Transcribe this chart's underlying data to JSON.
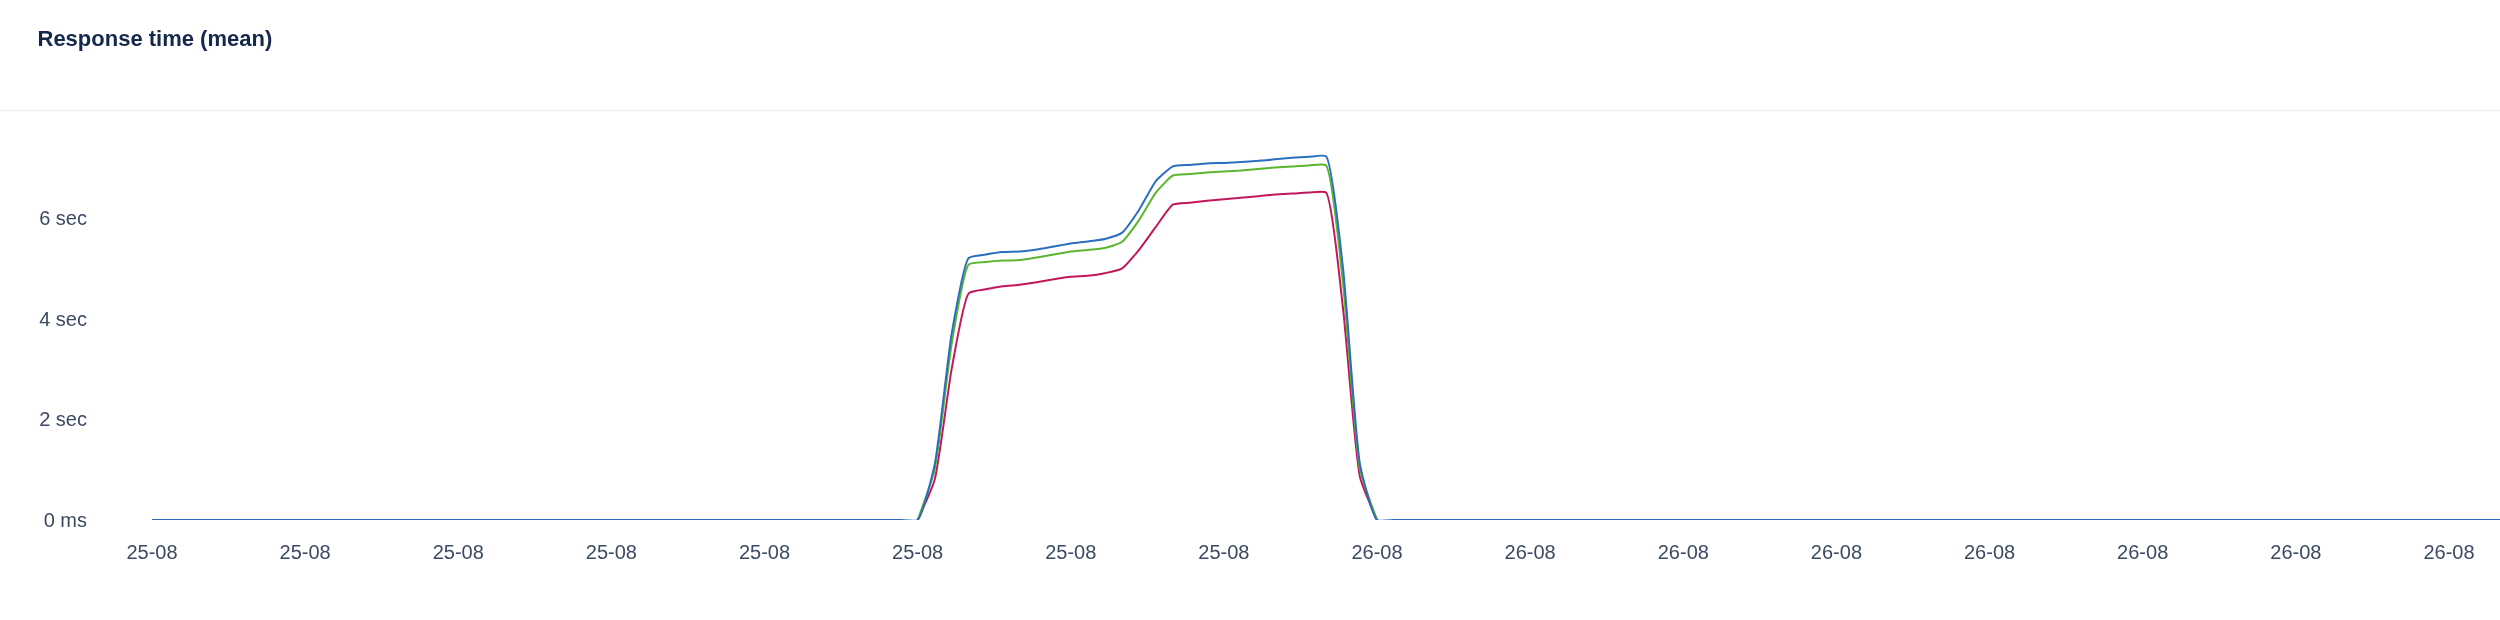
{
  "chart_data": {
    "type": "line",
    "title": "Response time (mean)",
    "categories": [
      "25-08",
      null,
      null,
      null,
      null,
      null,
      null,
      null,
      null,
      "25-08",
      null,
      null,
      null,
      null,
      null,
      null,
      null,
      null,
      "25-08",
      null,
      null,
      null,
      null,
      null,
      null,
      null,
      null,
      "25-08",
      null,
      null,
      null,
      null,
      null,
      null,
      null,
      null,
      "25-08",
      null,
      null,
      null,
      null,
      null,
      null,
      null,
      null,
      "25-08",
      null,
      null,
      null,
      null,
      null,
      null,
      null,
      null,
      "25-08",
      null,
      null,
      null,
      null,
      null,
      null,
      null,
      null,
      "25-08",
      null,
      null,
      null,
      null,
      null,
      null,
      null,
      null,
      "26-08",
      null,
      null,
      null,
      null,
      null,
      null,
      null,
      null,
      "26-08",
      null,
      null,
      null,
      null,
      null,
      null,
      null,
      null,
      "26-08",
      null,
      null,
      null,
      null,
      null,
      null,
      null,
      null,
      "26-08",
      null,
      null,
      null,
      null,
      null,
      null,
      null,
      null,
      "26-08",
      null,
      null,
      null,
      null,
      null,
      null,
      null,
      null,
      "26-08",
      null,
      null,
      null,
      null,
      null,
      null,
      null,
      null,
      "26-08",
      null,
      null,
      null,
      null,
      null,
      null,
      null,
      null,
      "26-08",
      null,
      null,
      null
    ],
    "ylim": [
      0,
      8.14
    ],
    "yticks": [
      {
        "value": 0,
        "label": "0 ms"
      },
      {
        "value": 2,
        "label": "2 sec"
      },
      {
        "value": 4,
        "label": "4 sec"
      },
      {
        "value": 6,
        "label": "6 sec"
      }
    ],
    "marker": "none",
    "line_style": "solid",
    "series": [
      {
        "color": "#c2185b",
        "values": [
          null,
          null,
          null,
          null,
          null,
          null,
          null,
          null,
          null,
          null,
          null,
          null,
          null,
          null,
          null,
          null,
          null,
          null,
          null,
          null,
          null,
          null,
          null,
          null,
          null,
          null,
          null,
          null,
          null,
          null,
          null,
          null,
          null,
          null,
          null,
          null,
          null,
          null,
          null,
          null,
          null,
          null,
          null,
          null,
          null,
          0,
          0.8,
          3.0,
          4.5,
          4.58,
          4.64,
          4.67,
          4.72,
          4.78,
          4.83,
          4.85,
          4.9,
          4.99,
          5.36,
          5.82,
          6.26,
          6.3,
          6.34,
          6.37,
          6.4,
          6.43,
          6.46,
          6.48,
          6.5,
          6.5,
          4.2,
          0.85,
          0,
          null,
          null,
          null,
          null,
          null,
          null,
          null,
          null,
          null,
          null,
          null,
          null,
          null,
          null,
          null,
          null,
          null,
          null,
          null,
          null,
          null,
          null,
          null,
          null,
          null,
          null,
          null,
          null,
          null,
          null,
          null,
          null,
          null,
          null,
          null,
          null,
          null,
          null,
          null,
          null,
          null,
          null,
          null,
          null,
          null,
          null,
          null,
          null,
          null,
          null,
          null,
          null,
          null,
          null,
          null,
          null,
          null,
          null,
          null,
          null,
          null,
          null,
          null,
          null,
          null,
          null
        ]
      },
      {
        "color": "#5ab52f",
        "values": [
          null,
          null,
          null,
          null,
          null,
          null,
          null,
          null,
          null,
          null,
          null,
          null,
          null,
          null,
          null,
          null,
          null,
          null,
          null,
          null,
          null,
          null,
          null,
          null,
          null,
          null,
          null,
          null,
          null,
          null,
          null,
          null,
          null,
          null,
          null,
          null,
          null,
          null,
          null,
          null,
          null,
          null,
          null,
          null,
          null,
          0,
          1.0,
          3.5,
          5.07,
          5.12,
          5.15,
          5.16,
          5.21,
          5.27,
          5.33,
          5.36,
          5.4,
          5.52,
          5.95,
          6.5,
          6.84,
          6.87,
          6.9,
          6.92,
          6.94,
          6.97,
          7.0,
          7.02,
          7.04,
          7.04,
          4.7,
          1.0,
          0,
          null,
          null,
          null,
          null,
          null,
          null,
          null,
          null,
          null,
          null,
          null,
          null,
          null,
          null,
          null,
          null,
          null,
          null,
          null,
          null,
          null,
          null,
          null,
          null,
          null,
          null,
          null,
          null,
          null,
          null,
          null,
          null,
          null,
          null,
          null,
          null,
          null,
          null,
          null,
          null,
          null,
          null,
          null,
          null,
          null,
          null,
          null,
          null,
          null,
          null,
          null,
          null,
          null,
          null,
          null,
          null,
          null,
          null,
          null,
          null,
          null,
          null,
          null,
          null,
          null,
          null
        ]
      },
      {
        "color": "#2a6ebd",
        "values": [
          0,
          0,
          0,
          0,
          0,
          0,
          0,
          0,
          0,
          0,
          0,
          0,
          0,
          0,
          0,
          0,
          0,
          0,
          0,
          0,
          0,
          0,
          0,
          0,
          0,
          0,
          0,
          0,
          0,
          0,
          0,
          0,
          0,
          0,
          0,
          0,
          0,
          0,
          0,
          0,
          0,
          0,
          0,
          0,
          0,
          0,
          1.1,
          3.7,
          5.2,
          5.27,
          5.32,
          5.33,
          5.37,
          5.43,
          5.49,
          5.53,
          5.58,
          5.7,
          6.15,
          6.73,
          7.02,
          7.05,
          7.08,
          7.09,
          7.11,
          7.13,
          7.16,
          7.19,
          7.21,
          7.22,
          5.0,
          1.1,
          0,
          0,
          0,
          0,
          0,
          0,
          0,
          0,
          0,
          0,
          0,
          0,
          0,
          0,
          0,
          0,
          0,
          0,
          0,
          0,
          0,
          0,
          0,
          0,
          0,
          0,
          0,
          0,
          0,
          0,
          0,
          0,
          0,
          0,
          0,
          0,
          0,
          0,
          0,
          0,
          0,
          0,
          0,
          0,
          0,
          0,
          0,
          0,
          0,
          0,
          0,
          0,
          0,
          0,
          0,
          0,
          0,
          0,
          0,
          0,
          0,
          0,
          0,
          0,
          0,
          0,
          0
        ]
      }
    ]
  }
}
